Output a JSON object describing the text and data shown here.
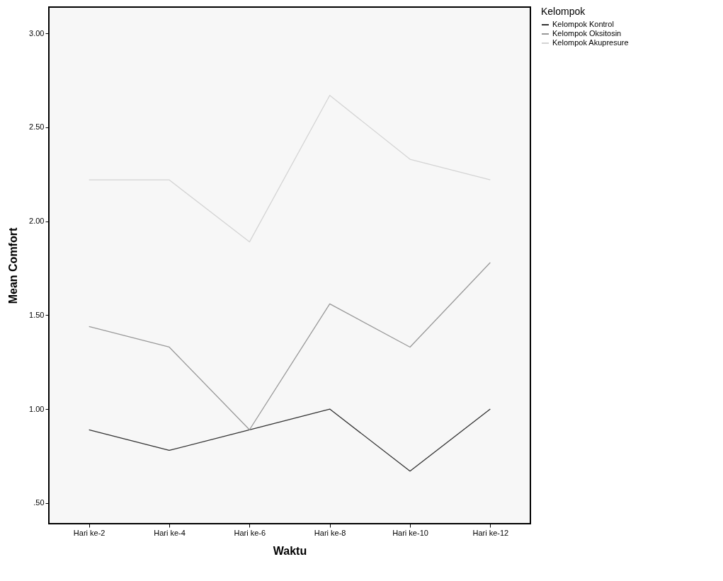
{
  "chart_data": {
    "type": "line",
    "xlabel": "Waktu",
    "ylabel": "Mean Comfort",
    "legend_title": "Kelompok",
    "categories": [
      "Hari ke-2",
      "Hari ke-4",
      "Hari ke-6",
      "Hari ke-8",
      "Hari ke-10",
      "Hari ke-12"
    ],
    "series": [
      {
        "name": "Kelompok Kontrol",
        "color": "#333333",
        "values": [
          0.89,
          0.78,
          0.89,
          1.0,
          0.67,
          1.0
        ]
      },
      {
        "name": "Kelompok Oksitosin",
        "color": "#999999",
        "values": [
          1.44,
          1.33,
          0.89,
          1.56,
          1.33,
          1.78
        ]
      },
      {
        "name": "Kelompok Akupresure",
        "color": "#d4d4d4",
        "values": [
          2.22,
          2.22,
          1.89,
          2.67,
          2.33,
          2.22
        ]
      }
    ],
    "ylim": [
      0.39,
      3.14
    ],
    "yticks": [
      {
        "value": 0.5,
        "label": ".50"
      },
      {
        "value": 1,
        "label": "1.00"
      },
      {
        "value": 1.5,
        "label": "1.50"
      },
      {
        "value": 2,
        "label": "2.00"
      },
      {
        "value": 2.5,
        "label": "2.50"
      },
      {
        "value": 3,
        "label": "3.00"
      }
    ],
    "grid": false,
    "legend": "top right",
    "marker": "none",
    "line_style": "solid"
  }
}
